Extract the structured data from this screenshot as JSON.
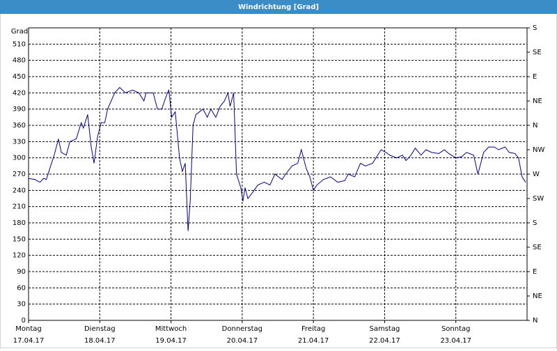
{
  "chart_data": {
    "type": "line",
    "title": "Windrichtung [Grad]",
    "y_label": "Grad",
    "x": [
      0,
      0.09,
      0.16,
      0.21,
      0.25,
      0.31,
      0.36,
      0.42,
      0.46,
      0.53,
      0.58,
      0.67,
      0.74,
      0.77,
      0.83,
      0.88,
      0.92,
      0.97,
      1.02,
      1.07,
      1.11,
      1.21,
      1.28,
      1.36,
      1.46,
      1.55,
      1.62,
      1.65,
      1.75,
      1.81,
      1.87,
      1.95,
      1.97,
      2.01,
      2.06,
      2.12,
      2.16,
      2.2,
      2.24,
      2.27,
      2.31,
      2.35,
      2.4,
      2.45,
      2.51,
      2.56,
      2.63,
      2.69,
      2.75,
      2.8,
      2.83,
      2.88,
      2.92,
      2.98,
      3.01,
      3.04,
      3.08,
      3.14,
      3.22,
      3.31,
      3.39,
      3.46,
      3.56,
      3.61,
      3.7,
      3.78,
      3.83,
      3.9,
      3.95,
      4.0,
      4.05,
      4.14,
      4.24,
      4.34,
      4.44,
      4.49,
      4.58,
      4.66,
      4.73,
      4.83,
      4.88,
      4.95,
      5.02,
      5.07,
      5.17,
      5.25,
      5.3,
      5.37,
      5.43,
      5.51,
      5.58,
      5.66,
      5.76,
      5.84,
      5.9,
      6.0,
      6.08,
      6.15,
      6.25,
      6.31,
      6.39,
      6.46,
      6.54,
      6.6,
      6.69,
      6.75,
      6.83,
      6.88,
      6.93,
      6.98
    ],
    "series": [
      {
        "name": "Windrichtung",
        "color": "#00008b",
        "values": [
          262,
          260,
          255,
          262,
          260,
          285,
          305,
          335,
          310,
          305,
          330,
          335,
          365,
          355,
          380,
          320,
          290,
          340,
          365,
          365,
          390,
          420,
          430,
          420,
          425,
          420,
          405,
          420,
          420,
          390,
          390,
          420,
          425,
          375,
          385,
          300,
          275,
          290,
          165,
          220,
          360,
          380,
          385,
          390,
          375,
          390,
          375,
          395,
          405,
          420,
          395,
          420,
          270,
          245,
          220,
          245,
          225,
          235,
          250,
          255,
          250,
          270,
          260,
          270,
          285,
          290,
          315,
          280,
          265,
          240,
          250,
          260,
          265,
          255,
          258,
          270,
          265,
          290,
          285,
          290,
          300,
          315,
          310,
          305,
          300,
          305,
          295,
          305,
          318,
          305,
          315,
          310,
          308,
          315,
          308,
          300,
          302,
          310,
          305,
          270,
          310,
          320,
          320,
          315,
          320,
          310,
          308,
          300,
          265,
          255
        ]
      }
    ],
    "xlim": [
      0,
      7
    ],
    "xticks": [
      {
        "value": 0,
        "label": "Montag",
        "date": "17.04.17"
      },
      {
        "value": 1,
        "label": "Dienstag",
        "date": "18.04.17"
      },
      {
        "value": 2,
        "label": "Mittwoch",
        "date": "19.04.17"
      },
      {
        "value": 3,
        "label": "Donnerstag",
        "date": "20.04.17"
      },
      {
        "value": 4,
        "label": "Freitag",
        "date": "21.04.17"
      },
      {
        "value": 5,
        "label": "Samstag",
        "date": "22.04.17"
      },
      {
        "value": 6,
        "label": "Sonntag",
        "date": "23.04.17"
      }
    ],
    "ylim": [
      0,
      540
    ],
    "yticks": [
      0,
      30,
      60,
      90,
      120,
      150,
      180,
      210,
      240,
      270,
      300,
      330,
      360,
      390,
      420,
      450,
      480,
      510
    ],
    "y2lim": [
      0,
      540
    ],
    "y2ticks": [
      {
        "value": 0,
        "label": "N"
      },
      {
        "value": 45,
        "label": "NE"
      },
      {
        "value": 90,
        "label": "E"
      },
      {
        "value": 135,
        "label": "SE"
      },
      {
        "value": 180,
        "label": "S"
      },
      {
        "value": 225,
        "label": "SW"
      },
      {
        "value": 270,
        "label": "W"
      },
      {
        "value": 315,
        "label": "NW"
      },
      {
        "value": 360,
        "label": "N"
      },
      {
        "value": 405,
        "label": "NE"
      },
      {
        "value": 450,
        "label": "E"
      },
      {
        "value": 495,
        "label": "SE"
      },
      {
        "value": 540,
        "label": "S"
      }
    ],
    "grid": true
  }
}
